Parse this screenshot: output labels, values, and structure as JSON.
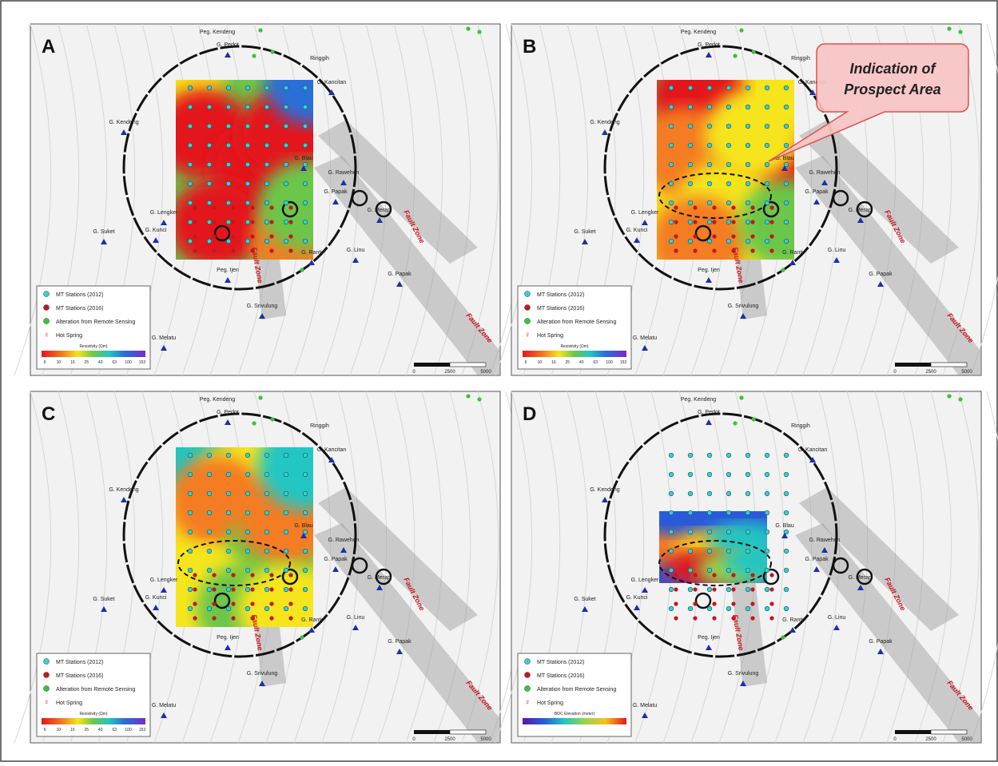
{
  "panels": [
    {
      "letter": "A",
      "colorbar": {
        "title": "Resistivity (Ωm)",
        "ticks": [
          "6",
          "10",
          "16",
          "25",
          "40",
          "63",
          "100",
          "153"
        ]
      }
    },
    {
      "letter": "B",
      "colorbar": {
        "title": "Resistivity (Ωm)",
        "ticks": [
          "6",
          "10",
          "16",
          "25",
          "40",
          "63",
          "100",
          "153"
        ]
      }
    },
    {
      "letter": "C",
      "colorbar": {
        "title": "Resistivity (Ωm)",
        "ticks": [
          "6",
          "10",
          "16",
          "25",
          "40",
          "63",
          "100",
          "153"
        ]
      }
    },
    {
      "letter": "D",
      "colorbar": {
        "title": "BOC Elevation (meter)"
      }
    }
  ],
  "legend": [
    "MT Stations (2012)",
    "MT Stations (2016)",
    "Alteration from Remote Sensing",
    "Hot Spring"
  ],
  "scale": [
    "0",
    "2500",
    "5000"
  ],
  "fault_zone": "Fault Zone",
  "places": [
    "Peg. Kendeng",
    "G. Pedot",
    "Ringgih",
    "G. Kancitan",
    "G. Kendeng",
    "G. Blau",
    "G. Rawehen",
    "G. Papak",
    "G. Merapi",
    "G. Lengker",
    "G. Kunci",
    "G. Suket",
    "G. Ranti",
    "G. Linu",
    "Peg. Ijen",
    "G. Papak",
    "G. Srivulung",
    "G. Melatu"
  ],
  "callout": {
    "lines": [
      "Indication of",
      "Prospect Area"
    ]
  }
}
